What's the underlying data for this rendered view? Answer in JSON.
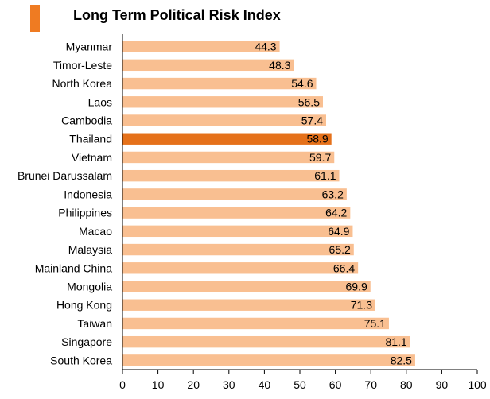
{
  "chart_data": {
    "type": "bar",
    "orientation": "horizontal",
    "title": "Long Term Political Risk Index",
    "categories": [
      "Myanmar",
      "Timor-Leste",
      "North Korea",
      "Laos",
      "Cambodia",
      "Thailand",
      "Vietnam",
      "Brunei Darussalam",
      "Indonesia",
      "Philippines",
      "Macao",
      "Malaysia",
      "Mainland China",
      "Mongolia",
      "Hong Kong",
      "Taiwan",
      "Singapore",
      "South Korea"
    ],
    "values": [
      44.3,
      48.3,
      54.6,
      56.5,
      57.4,
      58.9,
      59.7,
      61.1,
      63.2,
      64.2,
      64.9,
      65.2,
      66.4,
      69.9,
      71.3,
      75.1,
      81.1,
      82.5
    ],
    "value_labels": [
      "44.3",
      "48.3",
      "54.6",
      "56.5",
      "57.4",
      "58.9",
      "59.7",
      "61.1",
      "63.2",
      "64.2",
      "64.9",
      "65.2",
      "66.4",
      "69.9",
      "71.3",
      "75.1",
      "81.1",
      "82.5"
    ],
    "highlight": "Thailand",
    "xlim": [
      0,
      100
    ],
    "xticks": [
      "0",
      "10",
      "20",
      "30",
      "40",
      "50",
      "60",
      "70",
      "80",
      "90",
      "100"
    ],
    "xlabel": "",
    "ylabel": "",
    "grid": false,
    "legend": "none",
    "colors": {
      "bar": "#f9bf91",
      "highlight": "#e5711a",
      "accent": "#ef7b22",
      "axis": "#000000"
    }
  }
}
